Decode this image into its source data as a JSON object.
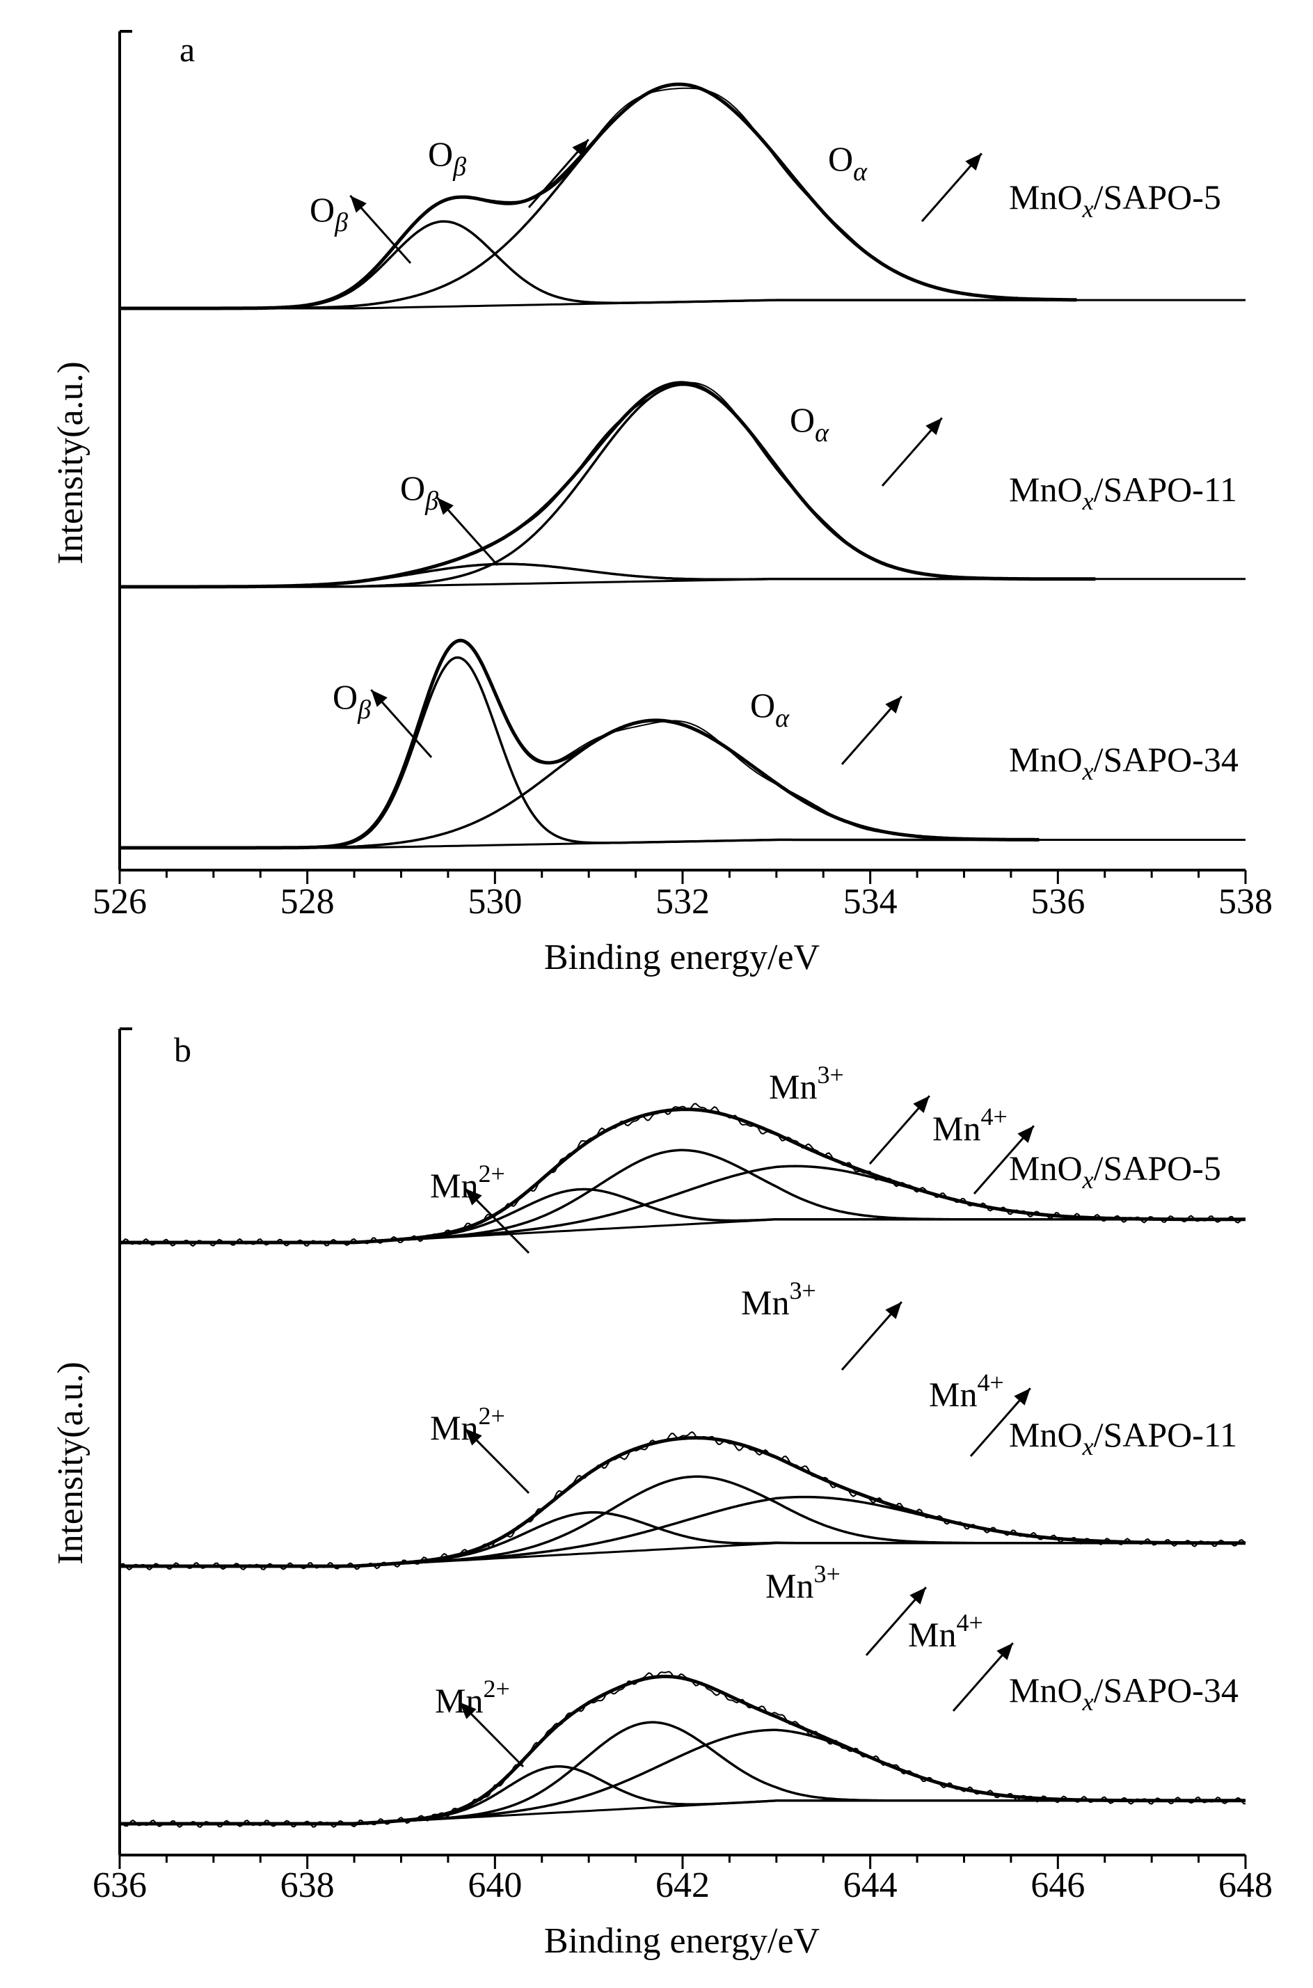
{
  "chart_data": [
    {
      "panel": "a",
      "type": "line",
      "xlabel": "Binding energy/eV",
      "ylabel": "Intensity(a.u.)",
      "xlim": [
        526,
        538
      ],
      "xticks": [
        "526",
        "528",
        "530",
        "532",
        "534",
        "536",
        "538"
      ],
      "samples": [
        {
          "name": "MnOx/SAPO-5",
          "label_main": "MnO",
          "label_sub": "x",
          "label_rest": "/SAPO-5",
          "curve_end": 536.2,
          "components": [
            {
              "name": "Oβ",
              "center": 529.45,
              "height": 0.36,
              "width": 0.55
            },
            {
              "name": "Oα",
              "center": 531.95,
              "height": 0.92,
              "width": 1.15
            }
          ],
          "peak_labels": [
            {
              "base": "O",
              "sub": "β",
              "anchor_x": 529.25
            },
            {
              "base": "O",
              "sub": "β",
              "anchor_x": 530.2
            },
            {
              "base": "O",
              "sub": "α",
              "anchor_x": 533.0
            }
          ]
        },
        {
          "name": "MnOx/SAPO-11",
          "label_main": "MnO",
          "label_sub": "x",
          "label_rest": "/SAPO-11",
          "curve_end": 536.4,
          "components": [
            {
              "name": "Oβ",
              "center": 530.05,
              "height": 0.09,
              "width": 0.9
            },
            {
              "name": "Oα",
              "center": 532.0,
              "height": 0.88,
              "width": 0.95
            }
          ],
          "peak_labels": [
            {
              "base": "O",
              "sub": "β",
              "anchor_x": 530.1
            },
            {
              "base": "O",
              "sub": "α",
              "anchor_x": 533.0
            }
          ]
        },
        {
          "name": "MnOx/SAPO-34",
          "label_main": "MnO",
          "label_sub": "x",
          "label_rest": "/SAPO-34",
          "curve_end": 535.8,
          "components": [
            {
              "name": "Oβ",
              "center": 529.6,
              "height": 0.82,
              "width": 0.42
            },
            {
              "name": "Oα",
              "center": 531.7,
              "height": 0.53,
              "width": 1.05
            }
          ],
          "peak_labels": [
            {
              "base": "O",
              "sub": "β",
              "anchor_x": 529.4
            },
            {
              "base": "O",
              "sub": "α",
              "anchor_x": 532.6
            }
          ]
        }
      ]
    },
    {
      "panel": "b",
      "type": "line",
      "xlabel": "Binding energy/eV",
      "ylabel": "Intensity(a.u.)",
      "xlim": [
        636,
        648
      ],
      "xticks": [
        "636",
        "638",
        "640",
        "642",
        "644",
        "646",
        "648"
      ],
      "samples": [
        {
          "name": "MnOx/SAPO-5",
          "label_main": "MnO",
          "label_sub": "x",
          "label_rest": "/SAPO-5",
          "components": [
            {
              "name": "Mn2+",
              "center": 640.9,
              "height": 0.23,
              "width": 0.62
            },
            {
              "name": "Mn3+",
              "center": 641.95,
              "height": 0.42,
              "width": 0.82
            },
            {
              "name": "Mn4+",
              "center": 643.2,
              "height": 0.3,
              "width": 1.2
            }
          ],
          "peak_labels": [
            {
              "base": "Mn",
              "sup": "2+",
              "anchor_x": 640.25
            },
            {
              "base": "Mn",
              "sup": "3+",
              "anchor_x": 642.5
            },
            {
              "base": "Mn",
              "sup": "4+",
              "anchor_x": 644.7
            }
          ]
        },
        {
          "name": "MnOx/SAPO-11",
          "label_main": "MnO",
          "label_sub": "x",
          "label_rest": "/SAPO-11",
          "components": [
            {
              "name": "Mn2+",
              "center": 641.0,
              "height": 0.23,
              "width": 0.65
            },
            {
              "name": "Mn3+",
              "center": 642.1,
              "height": 0.4,
              "width": 0.85
            },
            {
              "name": "Mn4+",
              "center": 643.3,
              "height": 0.26,
              "width": 1.25
            }
          ],
          "peak_labels": [
            {
              "base": "Mn",
              "sup": "2+",
              "anchor_x": 640.25
            },
            {
              "base": "Mn",
              "sup": "3+",
              "anchor_x": 642.4
            },
            {
              "base": "Mn",
              "sup": "4+",
              "anchor_x": 644.6
            }
          ]
        },
        {
          "name": "MnOx/SAPO-34",
          "label_main": "MnO",
          "label_sub": "x",
          "label_rest": "/SAPO-34",
          "components": [
            {
              "name": "Mn2+",
              "center": 640.65,
              "height": 0.26,
              "width": 0.52
            },
            {
              "name": "Mn3+",
              "center": 641.65,
              "height": 0.48,
              "width": 0.7
            },
            {
              "name": "Mn4+",
              "center": 642.9,
              "height": 0.4,
              "width": 1.1
            }
          ],
          "peak_labels": [
            {
              "base": "Mn",
              "sup": "2+",
              "anchor_x": 640.15
            },
            {
              "base": "Mn",
              "sup": "3+",
              "anchor_x": 642.3
            },
            {
              "base": "Mn",
              "sup": "4+",
              "anchor_x": 644.2
            }
          ]
        }
      ]
    }
  ]
}
